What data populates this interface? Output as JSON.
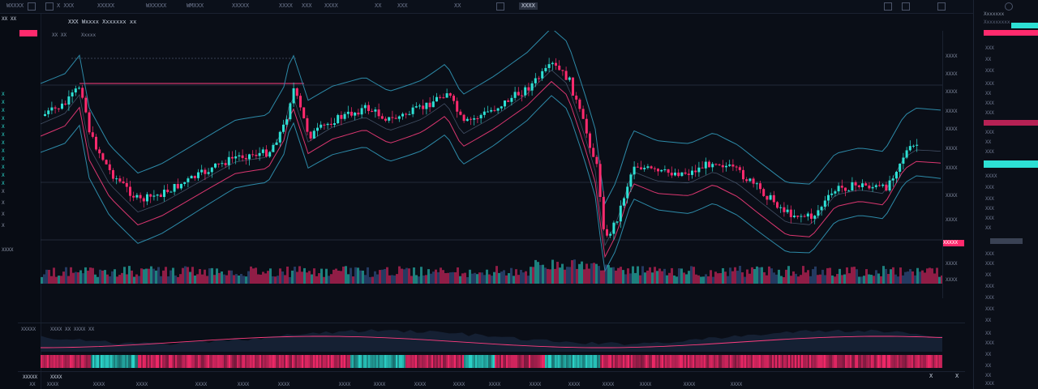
{
  "top_toolbar": {
    "items": [
      "WXXXX",
      "X XXX",
      "XXXXX",
      "WXXXXX",
      "WMXXX",
      "XXXXX",
      "XXXX",
      "XXX",
      "XXXX",
      "XX",
      "XXX",
      "XX"
    ],
    "badge": "XXXX"
  },
  "chart_header": {
    "title": "XXX Wxxxx Xxxxxxx xx",
    "info_left": "XX XX",
    "info_right": "Xxxxx"
  },
  "left_watchlist": {
    "top": "XX XX",
    "rows": [
      "X",
      "X",
      "X",
      "X",
      "X",
      "X",
      "X",
      "X",
      "X",
      "X",
      "X",
      "X",
      "X",
      "X",
      "X",
      "X"
    ],
    "bottom": "XXXX"
  },
  "price_axis": {
    "labels": [
      "XXXX",
      "XXXX",
      "XXXX",
      "XXXX",
      "XXXX",
      "XXXX",
      "XXXX",
      "XXXX",
      "XXXX",
      "XXXX",
      "XXXX"
    ],
    "current_price": "XXXXX"
  },
  "indicator_header": {
    "name": "XXXXX",
    "params": "XXXX  XX XXXX  XX"
  },
  "bottom_bar": {
    "left": "XXXXX",
    "timeframe": "XXXX",
    "page_left": "X",
    "page_right": "X"
  },
  "x_axis": {
    "labels": [
      "XX",
      "XXXX",
      "XXXX",
      "XXXX",
      "XXXX",
      "XXXX",
      "XXXX",
      "XXXX",
      "XXXX",
      "XXXX",
      "XXXX",
      "XXXX",
      "XXXX",
      "XXXX",
      "XXXX",
      "XXXX",
      "XXXX",
      "XXXX"
    ]
  },
  "right_panel": {
    "header": "Xxxxxxx",
    "search_placeholder": "Xxxxxxxxx",
    "rows": [
      "XXX",
      "XX",
      "XXX",
      "XXX",
      "XX",
      "XXX",
      "XXX",
      "XXX",
      "XX",
      "XXX",
      "XXXX",
      "XXX",
      "XXX",
      "XXX",
      "XXX",
      "XX",
      "XXX",
      "XXX",
      "XX",
      "XXX",
      "XXX",
      "XXX",
      "XX",
      "XX",
      "XXX",
      "XX",
      "XX",
      "XX",
      "XXX",
      "XXX",
      "XXX"
    ]
  },
  "colors": {
    "bull": "#2de0d4",
    "bear": "#ff2a6d",
    "band": "#2d8aa8",
    "ma_pink": "#ff3d7f",
    "background": "#0a0e17"
  }
}
